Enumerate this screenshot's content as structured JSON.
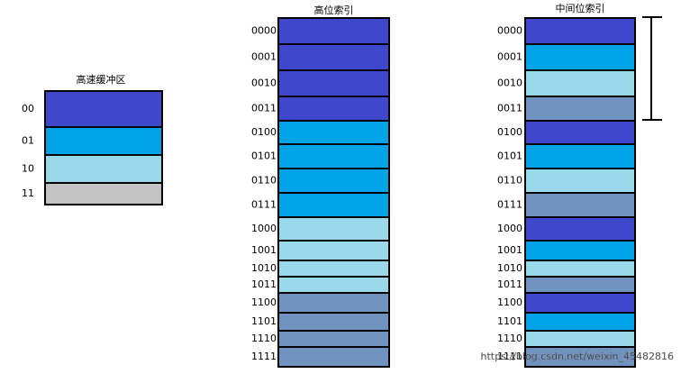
{
  "cache": {
    "title": "高速缓冲区",
    "rows": [
      "00",
      "01",
      "10",
      "11"
    ]
  },
  "columns": [
    {
      "title": "高位索引",
      "rows": [
        "0000",
        "0001",
        "0010",
        "0011",
        "0100",
        "0101",
        "0110",
        "0111",
        "1000",
        "1001",
        "1010",
        "1011",
        "1100",
        "1101",
        "1110",
        "1111"
      ]
    },
    {
      "title": "中间位索引",
      "rows": [
        "0000",
        "0001",
        "0010",
        "0011",
        "0100",
        "0101",
        "0110",
        "0111",
        "1000",
        "1001",
        "1010",
        "1011",
        "1100",
        "1101",
        "1110",
        "1111"
      ]
    }
  ],
  "watermark": "https://blog.csdn.net/weixin_45482816"
}
